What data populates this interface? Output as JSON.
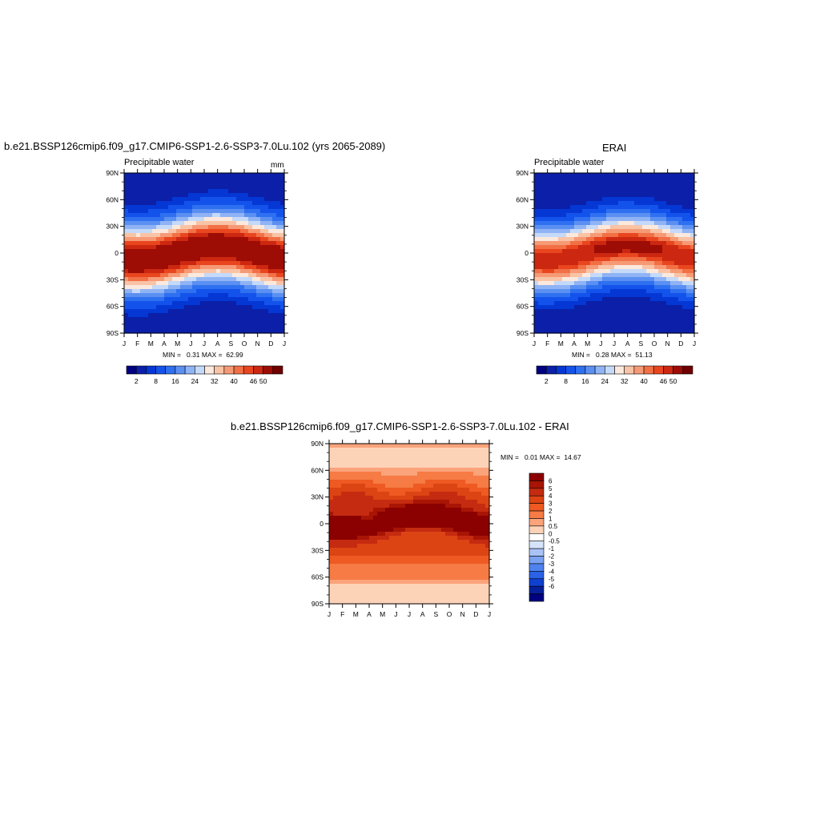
{
  "panels": {
    "model": {
      "title": "b.e21.BSSP126cmip6.f09_g17.CMIP6-SSP1-2.6-SSP3-7.0Lu.102 (yrs 2065-2089)",
      "left_label": "Precipitable water",
      "units": "mm",
      "minmax": "MIN =   0.31 MAX =  62.99"
    },
    "obs": {
      "title": "ERAI",
      "left_label": "Precipitable water",
      "minmax": "MIN =   0.28 MAX =  51.13"
    },
    "diff": {
      "title": "b.e21.BSSP126cmip6.f09_g17.CMIP6-SSP1-2.6-SSP3-7.0Lu.102 - ERAI",
      "minmax": "MIN =   0.01 MAX =  14.67"
    }
  },
  "chart_data": [
    {
      "type": "heatmap",
      "name": "model-precipitable-water",
      "x_ticks": [
        "J",
        "F",
        "M",
        "A",
        "M",
        "J",
        "J",
        "A",
        "S",
        "O",
        "N",
        "D",
        "J"
      ],
      "y_ticks": [
        "90N",
        "60N",
        "30N",
        "0",
        "30S",
        "60S",
        "90S"
      ],
      "levels": [
        2,
        5,
        8,
        12,
        16,
        20,
        24,
        28,
        32,
        36,
        40,
        43,
        46,
        50
      ],
      "level_labels": [
        "2",
        "8",
        "16",
        "24",
        "32",
        "40",
        "46",
        "50"
      ],
      "min": 0.31,
      "max": 62.99
    },
    {
      "type": "heatmap",
      "name": "erai-precipitable-water",
      "x_ticks": [
        "J",
        "F",
        "M",
        "A",
        "M",
        "J",
        "J",
        "A",
        "S",
        "O",
        "N",
        "D",
        "J"
      ],
      "y_ticks": [
        "90N",
        "60N",
        "30N",
        "0",
        "30S",
        "60S",
        "90S"
      ],
      "levels": [
        2,
        5,
        8,
        12,
        16,
        20,
        24,
        28,
        32,
        36,
        40,
        43,
        46,
        50
      ],
      "level_labels": [
        "2",
        "8",
        "16",
        "24",
        "32",
        "40",
        "46",
        "50"
      ],
      "min": 0.28,
      "max": 51.13
    },
    {
      "type": "heatmap",
      "name": "difference",
      "x_ticks": [
        "J",
        "F",
        "M",
        "A",
        "M",
        "J",
        "J",
        "A",
        "S",
        "O",
        "N",
        "D",
        "J"
      ],
      "y_ticks": [
        "90N",
        "60N",
        "30N",
        "0",
        "30S",
        "60S",
        "90S"
      ],
      "level_labels": [
        "6",
        "5",
        "4",
        "3",
        "2",
        "1",
        "0.5",
        "0",
        "-0.5",
        "-1",
        "-2",
        "-3",
        "-4",
        "-5",
        "-6"
      ],
      "min": 0.01,
      "max": 14.67
    }
  ],
  "colors": {
    "seq": [
      "#000080",
      "#0b1fa8",
      "#0537d4",
      "#1353ec",
      "#2e70f0",
      "#5b90f2",
      "#8fb3f4",
      "#c5d9f8",
      "#fbe9de",
      "#f9c3a6",
      "#f69a76",
      "#f27046",
      "#e9461f",
      "#cc2710",
      "#9d0c05",
      "#700000"
    ],
    "div": [
      "#8b0000",
      "#a81505",
      "#c52b10",
      "#dd4414",
      "#ee5a22",
      "#f67b45",
      "#fba37a",
      "#fdd3b8",
      "#ffffff",
      "#d5e4fb",
      "#a9c3f7",
      "#7ba2f2",
      "#4f82ef",
      "#2b62e8",
      "#0f40d0",
      "#06209c",
      "#000080"
    ]
  }
}
